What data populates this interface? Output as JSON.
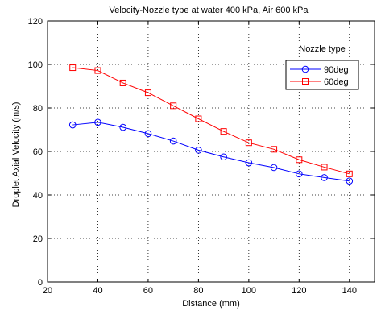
{
  "chart_data": {
    "type": "line",
    "title": "Velocity-Nozzle type at water 400 kPa, Air 600 kPa",
    "xlabel": "Distance (mm)",
    "ylabel": "Droplet Axial Velocity (m/s)",
    "xlim": [
      20,
      150
    ],
    "ylim": [
      0,
      120
    ],
    "xticks": [
      20,
      40,
      60,
      80,
      100,
      120,
      140
    ],
    "yticks": [
      0,
      20,
      40,
      60,
      80,
      100,
      120
    ],
    "grid": true,
    "legend": {
      "title": "Nozzle type",
      "position": "top-right"
    },
    "x": [
      30,
      40,
      50,
      60,
      70,
      80,
      90,
      100,
      110,
      120,
      130,
      140
    ],
    "series": [
      {
        "name": "90deg",
        "color": "#0000ff",
        "marker": "circle",
        "values": [
          72.2,
          73.4,
          71.1,
          68.2,
          64.8,
          60.6,
          57.5,
          54.8,
          52.6,
          49.7,
          48.0,
          46.4
        ]
      },
      {
        "name": "60deg",
        "color": "#ff0000",
        "marker": "square",
        "values": [
          98.5,
          97.2,
          91.5,
          87.0,
          81.0,
          75.0,
          69.2,
          64.0,
          61.0,
          56.2,
          52.8,
          49.7
        ]
      }
    ]
  }
}
